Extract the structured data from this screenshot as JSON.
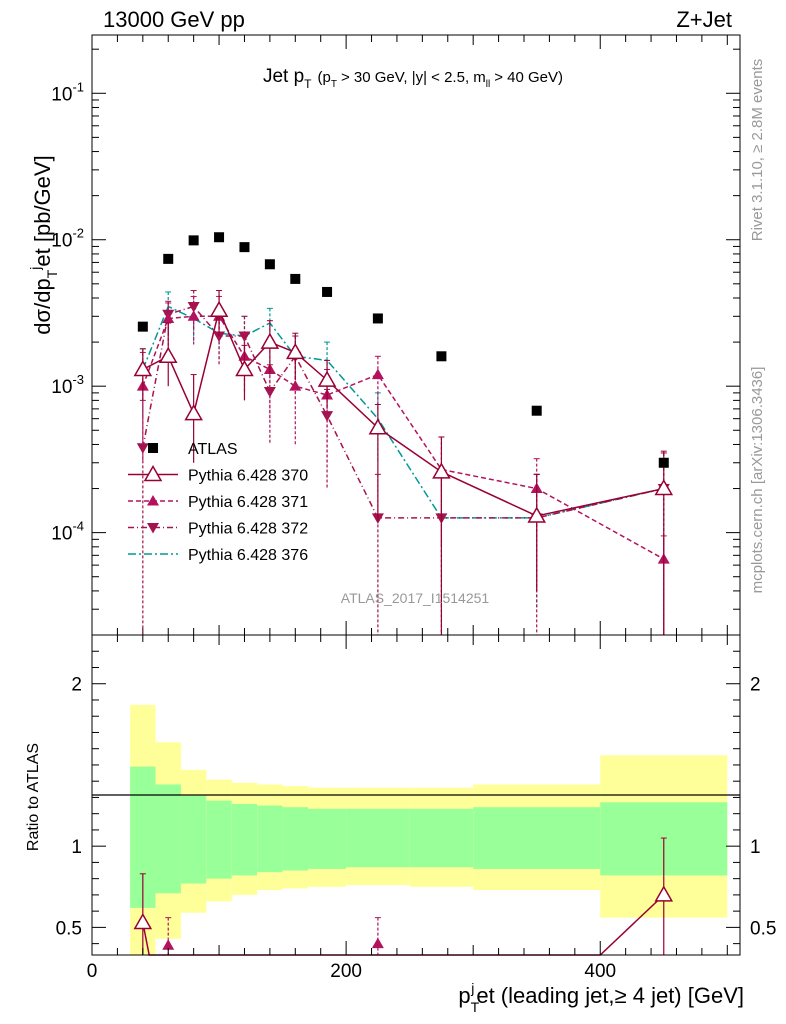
{
  "header": {
    "left": "13000 GeV pp",
    "right": "Z+Jet"
  },
  "side_labels": {
    "rivet": "Rivet 3.1.10, ≥ 2.8M events",
    "mcplots": "mcplots.cern.ch [arXiv:1306.3436]"
  },
  "watermark": "ATLAS_2017_I1514251",
  "colors": {
    "atlas": "#000000",
    "py370": "#990033",
    "py371": "#b3135c",
    "py372": "#a3144f",
    "py376": "#009999",
    "band_inner": "#99ff99",
    "band_outer": "#ffff99"
  },
  "chart_data": [
    {
      "type": "scatter",
      "panel": "main",
      "title": {
        "main": "Jet p",
        "sub": "T",
        "cut_open": "(p",
        "cut_sub": "T",
        "cut_mid": "> 30 GeV, |y| < 2.5, m",
        "cut_sub2": "ll",
        "cut_close": "> 40 GeV)"
      },
      "ylabel": "dσ/dp_T^j et [pb/GeV]",
      "yscale": "log",
      "ylim": [
        2e-05,
        0.25
      ],
      "xlim": [
        0,
        510
      ],
      "ytick_labels": [
        "10^-4",
        "10^-3",
        "10^-2",
        "10^-1"
      ],
      "x": [
        40,
        60,
        80,
        100,
        120,
        140,
        160,
        185,
        225,
        275,
        350,
        450
      ],
      "series": [
        {
          "name": "ATLAS",
          "marker": "square",
          "values": [
            0.00255,
            0.0074,
            0.0099,
            0.0104,
            0.0089,
            0.0068,
            0.0054,
            0.0044,
            0.0029,
            0.0016,
            0.00068,
            0.0003
          ]
        },
        {
          "name": "Pythia 6.428 370",
          "marker": "open-triangle-up",
          "values": [
            0.0013,
            0.0016,
            0.00065,
            0.0033,
            0.0013,
            0.002,
            0.0017,
            0.0011,
            0.00052,
            0.00026,
            0.00013,
            0.0002
          ],
          "err_up": [
            0.0018,
            0.0027,
            0.0012,
            0.0045,
            0.0019,
            0.0028,
            0.0023,
            0.0015,
            0.00075,
            0.00045,
            0.00025,
            0.00036
          ],
          "err_down": [
            0.0008,
            0.001,
            0.0003,
            0.0022,
            0.0008,
            0.0012,
            0.0011,
            0.0007,
            0.00012,
            2e-05,
            4e-05,
            2e-05
          ]
        },
        {
          "name": "Pythia 6.428 371",
          "marker": "filled-triangle-up",
          "values": [
            0.001,
            0.0029,
            0.003,
            0.003,
            0.0016,
            0.0013,
            0.001,
            0.00087,
            0.0012,
            0.00027,
            0.0002,
            6.6e-05
          ],
          "err_up": [
            0.0017,
            0.0037,
            0.0041,
            0.0041,
            0.0023,
            0.0019,
            0.0016,
            0.0013,
            0.0016,
            0.00045,
            0.00032,
            9.5e-05
          ],
          "err_down": [
            0.0003,
            0.0019,
            0.0019,
            0.0019,
            0.0009,
            0.0006,
            0.0004,
            0.0003,
            0.0007,
            8e-05,
            4e-05,
            2e-05
          ]
        },
        {
          "name": "Pythia 6.428 372",
          "marker": "filled-triangle-down",
          "values": [
            0.00038,
            0.0031,
            0.0035,
            0.0022,
            0.0022,
            0.00092,
            0.0016,
            0.00063,
            0.000126,
            0.000126,
            0.000126,
            0.0002
          ],
          "err_up": [
            0.0008,
            0.0038,
            0.0045,
            0.003,
            0.003,
            0.0014,
            0.0022,
            0.00095,
            0.00025,
            0.00025,
            0.00025,
            0.00035
          ],
          "err_down": [
            2e-05,
            0.0022,
            0.0024,
            0.0014,
            0.0014,
            0.0004,
            0.0009,
            0.0002,
            2e-05,
            2e-05,
            2e-05,
            2e-05
          ]
        },
        {
          "name": "Pythia 6.428 376",
          "marker": "line",
          "values": [
            0.0013,
            0.0035,
            0.0029,
            0.0023,
            0.0022,
            0.0027,
            0.0016,
            0.0015,
            0.0006,
            0.000126,
            0.000126,
            0.0002
          ],
          "err_up": [
            0.0018,
            0.0044,
            0.0037,
            0.003,
            0.003,
            0.0034,
            0.0022,
            0.002,
            0.0009,
            0.00025,
            0.00025,
            0.00035
          ],
          "err_down": [
            0.0006,
            0.0025,
            0.002,
            0.0015,
            0.0015,
            0.0019,
            0.001,
            0.0009,
            0.0003,
            2e-05,
            3e-05,
            2e-05
          ]
        }
      ]
    },
    {
      "type": "line",
      "panel": "ratio",
      "ylabel": "Ratio to ATLAS",
      "ylim": [
        0.33,
        2.3
      ],
      "xlim": [
        0,
        510
      ],
      "ytick_labels": [
        "0.5",
        "1",
        "2"
      ],
      "xtick_labels": [
        "0",
        "200",
        "400"
      ],
      "xlabel": {
        "pre": "p",
        "sub": "T",
        "sup": "j",
        "post": "et (leading jet,≥ 4 jet) [GeV]"
      },
      "bands": {
        "edges": [
          30,
          50,
          70,
          90,
          110,
          130,
          150,
          170,
          200,
          250,
          300,
          400,
          500
        ],
        "inner_low": [
          0.62,
          0.71,
          0.77,
          0.8,
          0.82,
          0.84,
          0.85,
          0.86,
          0.87,
          0.87,
          0.86,
          0.82
        ],
        "inner_high": [
          1.49,
          1.38,
          1.31,
          1.28,
          1.26,
          1.25,
          1.24,
          1.23,
          1.23,
          1.23,
          1.24,
          1.27
        ],
        "outer_low": [
          0.33,
          0.43,
          0.59,
          0.66,
          0.7,
          0.73,
          0.74,
          0.75,
          0.76,
          0.75,
          0.73,
          0.56
        ],
        "outer_high": [
          1.87,
          1.64,
          1.47,
          1.41,
          1.39,
          1.38,
          1.37,
          1.36,
          1.36,
          1.36,
          1.38,
          1.56
        ]
      },
      "series": [
        {
          "name": "Pythia 6.428 370",
          "x": [
            40,
            45,
            400,
            450
          ],
          "values": [
            0.53,
            0.33,
            0.33,
            0.7
          ],
          "markers_x": [
            40,
            450
          ],
          "markers_y": [
            0.53,
            0.7
          ],
          "err_up": [
            0.83,
            1.05
          ],
          "err_down": [
            0.33,
            0.33
          ]
        },
        {
          "name": "Pythia 6.428 371",
          "x": [
            60,
            225
          ],
          "values": [
            0.39,
            0.4
          ],
          "err_up": [
            0.56,
            0.56
          ],
          "err_down": [
            0.33,
            0.33
          ]
        }
      ]
    }
  ]
}
